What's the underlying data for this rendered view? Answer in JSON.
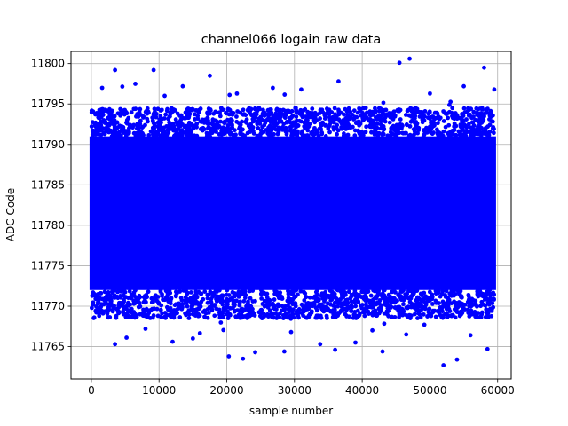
{
  "chart_data": {
    "type": "scatter",
    "title": "channel066 logain raw data",
    "xlabel": "sample number",
    "ylabel": "ADC Code",
    "xlim": [
      -3000,
      62000
    ],
    "ylim": [
      11761,
      11801.5
    ],
    "x_ticks": [
      0,
      10000,
      20000,
      30000,
      40000,
      50000,
      60000
    ],
    "y_ticks": [
      11765,
      11770,
      11775,
      11780,
      11785,
      11790,
      11795,
      11800
    ],
    "grid": true,
    "marker_color": "#0000ff",
    "series": [
      {
        "x_range": [
          0,
          59500
        ],
        "dense_band": [
          11772,
          11791
        ],
        "outliers": [
          [
            3500,
            11799.2
          ],
          [
            9200,
            11799.2
          ],
          [
            17500,
            11798.5
          ],
          [
            36500,
            11797.8
          ],
          [
            45500,
            11800.1
          ],
          [
            47000,
            11800.6
          ],
          [
            58000,
            11799.5
          ],
          [
            59500,
            11796.8
          ],
          [
            6500,
            11797.5
          ],
          [
            13500,
            11797.2
          ],
          [
            21500,
            11796.3
          ],
          [
            26800,
            11797.0
          ],
          [
            50000,
            11796.3
          ],
          [
            55000,
            11797.2
          ],
          [
            1600,
            11797.0
          ],
          [
            31000,
            11796.8
          ],
          [
            3500,
            11765.3
          ],
          [
            5200,
            11766.1
          ],
          [
            20300,
            11763.8
          ],
          [
            22400,
            11763.5
          ],
          [
            24200,
            11764.3
          ],
          [
            28500,
            11764.4
          ],
          [
            33800,
            11765.3
          ],
          [
            36000,
            11764.6
          ],
          [
            39000,
            11765.5
          ],
          [
            43000,
            11764.4
          ],
          [
            52000,
            11762.7
          ],
          [
            54000,
            11763.4
          ],
          [
            58500,
            11764.7
          ],
          [
            12000,
            11765.6
          ],
          [
            15000,
            11766.0
          ],
          [
            46500,
            11766.5
          ],
          [
            8000,
            11767.2
          ],
          [
            29500,
            11766.8
          ],
          [
            41500,
            11767.0
          ],
          [
            56000,
            11766.4
          ]
        ]
      }
    ]
  }
}
